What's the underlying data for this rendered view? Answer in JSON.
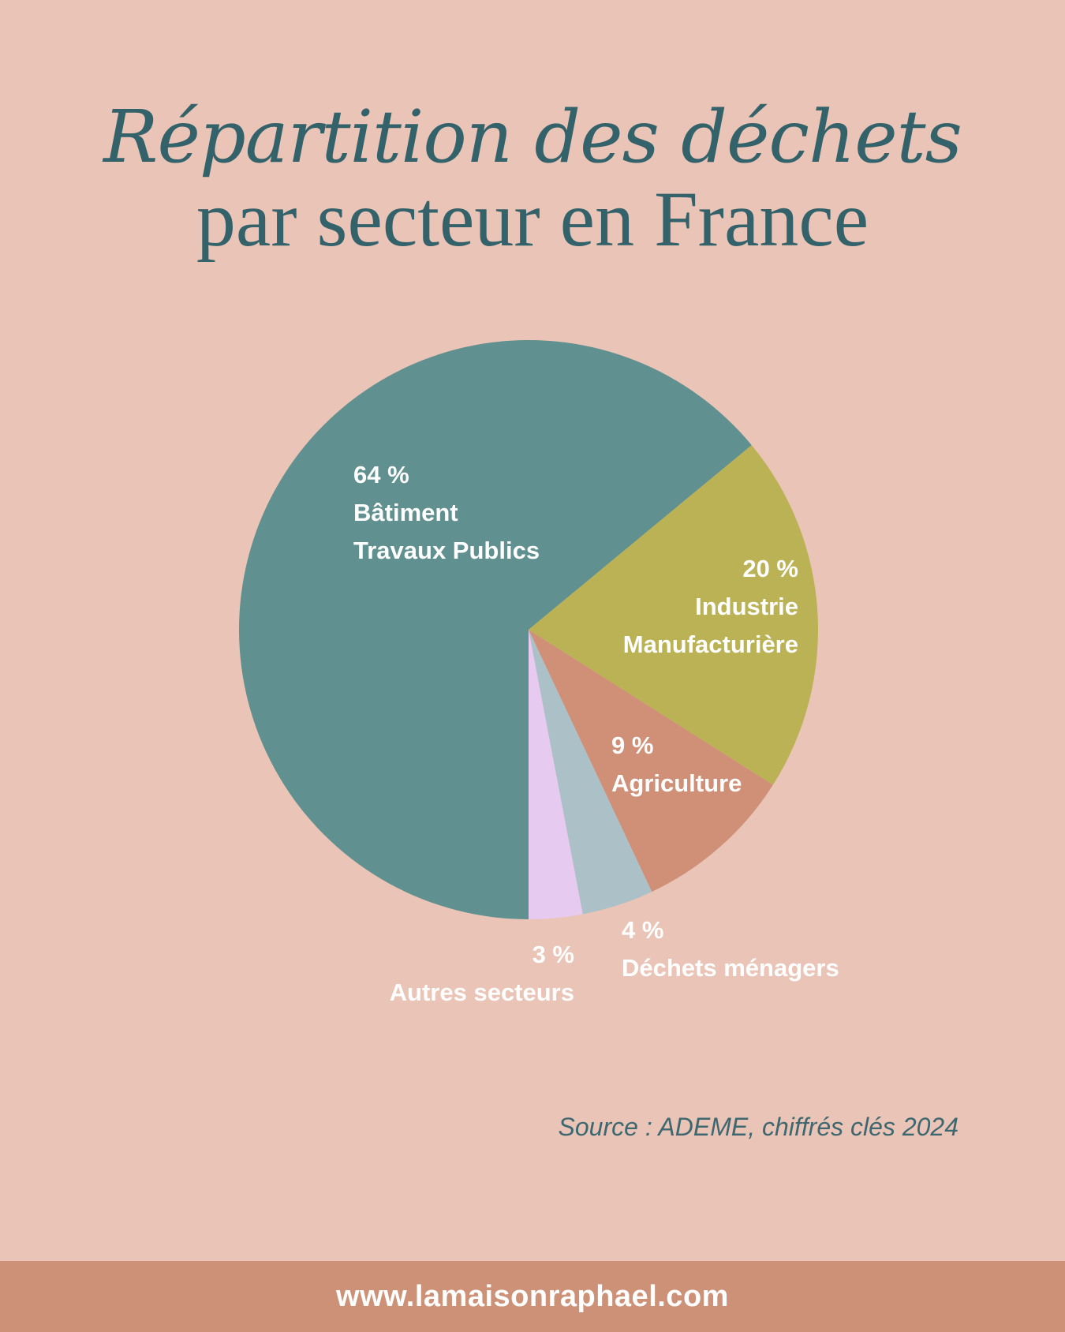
{
  "header": {
    "title_line1": "Répartition des déchets",
    "title_line2": "par secteur en France"
  },
  "chart_data": {
    "type": "pie",
    "slices": [
      {
        "value": 64,
        "value_label": "64 %",
        "label_lines": [
          "Bâtiment",
          "Travaux Publics"
        ],
        "color": "#60908F"
      },
      {
        "value": 20,
        "value_label": "20 %",
        "label_lines": [
          "Industrie",
          "Manufacturière"
        ],
        "color": "#BAB255"
      },
      {
        "value": 9,
        "value_label": "9 %",
        "label_lines": [
          "Agriculture"
        ],
        "color": "#CF9077"
      },
      {
        "value": 4,
        "value_label": "4 %",
        "label_lines": [
          "Déchets ménagers"
        ],
        "color": "#ABC0C7"
      },
      {
        "value": 3,
        "value_label": "3 %",
        "label_lines": [
          "Autres secteurs"
        ],
        "color": "#E6CAF0"
      }
    ]
  },
  "source": "Source : ADEME, chiffrés clés 2024",
  "footer": {
    "url": "www.lamaisonraphael.com"
  }
}
